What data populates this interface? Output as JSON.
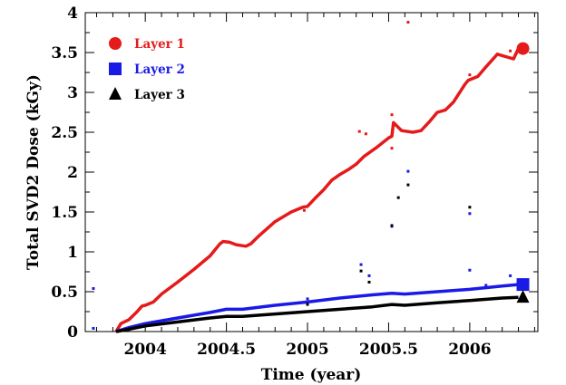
{
  "chart_data": {
    "type": "scatter",
    "title": "",
    "xlabel": "Time (year)",
    "ylabel": "Total SVD2 Dose (kGy)",
    "xlim": [
      2003.63,
      2006.42
    ],
    "ylim": [
      0,
      4
    ],
    "x_ticks": [
      2004,
      2004.5,
      2005,
      2005.5,
      2006
    ],
    "x_tick_labels": [
      "2004",
      "2004.5",
      "2005",
      "2005.5",
      "2006"
    ],
    "y_ticks": [
      0,
      0.5,
      1,
      1.5,
      2,
      2.5,
      3,
      3.5,
      4
    ],
    "y_tick_labels": [
      "0",
      "0.5",
      "1",
      "1.5",
      "2",
      "2.5",
      "3",
      "3.5",
      "4"
    ],
    "legend_position": "top-left",
    "series": [
      {
        "name": "Layer 1",
        "color": "#e51a1a",
        "marker": "circle",
        "points": [
          [
            2003.82,
            0.0
          ],
          [
            2003.85,
            0.1
          ],
          [
            2003.9,
            0.15
          ],
          [
            2003.95,
            0.25
          ],
          [
            2003.98,
            0.32
          ],
          [
            2004.0,
            0.33
          ],
          [
            2004.05,
            0.37
          ],
          [
            2004.1,
            0.47
          ],
          [
            2004.2,
            0.62
          ],
          [
            2004.3,
            0.78
          ],
          [
            2004.4,
            0.95
          ],
          [
            2004.46,
            1.1
          ],
          [
            2004.48,
            1.13
          ],
          [
            2004.52,
            1.12
          ],
          [
            2004.56,
            1.09
          ],
          [
            2004.62,
            1.07
          ],
          [
            2004.65,
            1.1
          ],
          [
            2004.7,
            1.2
          ],
          [
            2004.8,
            1.38
          ],
          [
            2004.9,
            1.5
          ],
          [
            2004.97,
            1.56
          ],
          [
            2005.0,
            1.57
          ],
          [
            2005.05,
            1.68
          ],
          [
            2005.1,
            1.78
          ],
          [
            2005.15,
            1.9
          ],
          [
            2005.2,
            1.97
          ],
          [
            2005.25,
            2.03
          ],
          [
            2005.3,
            2.1
          ],
          [
            2005.35,
            2.2
          ],
          [
            2005.42,
            2.3
          ],
          [
            2005.5,
            2.43
          ],
          [
            2005.52,
            2.45
          ],
          [
            2005.53,
            2.62
          ],
          [
            2005.58,
            2.52
          ],
          [
            2005.65,
            2.5
          ],
          [
            2005.7,
            2.52
          ],
          [
            2005.75,
            2.63
          ],
          [
            2005.8,
            2.75
          ],
          [
            2005.85,
            2.78
          ],
          [
            2005.9,
            2.88
          ],
          [
            2005.97,
            3.1
          ],
          [
            2005.99,
            3.15
          ],
          [
            2006.05,
            3.2
          ],
          [
            2006.1,
            3.32
          ],
          [
            2006.17,
            3.48
          ],
          [
            2006.22,
            3.45
          ],
          [
            2006.27,
            3.42
          ],
          [
            2006.3,
            3.55
          ]
        ],
        "outliers": [
          [
            2005.62,
            3.88
          ],
          [
            2005.52,
            2.72
          ],
          [
            2005.32,
            2.51
          ],
          [
            2005.36,
            2.48
          ],
          [
            2005.52,
            2.3
          ],
          [
            2006.0,
            3.22
          ],
          [
            2006.25,
            3.52
          ],
          [
            2004.98,
            1.52
          ]
        ],
        "end_value": 3.55
      },
      {
        "name": "Layer 2",
        "color": "#1a1ae6",
        "marker": "square",
        "points": [
          [
            2003.82,
            0.0
          ],
          [
            2003.9,
            0.05
          ],
          [
            2004.0,
            0.1
          ],
          [
            2004.2,
            0.17
          ],
          [
            2004.4,
            0.24
          ],
          [
            2004.5,
            0.28
          ],
          [
            2004.6,
            0.28
          ],
          [
            2004.8,
            0.33
          ],
          [
            2005.0,
            0.37
          ],
          [
            2005.2,
            0.42
          ],
          [
            2005.4,
            0.46
          ],
          [
            2005.52,
            0.48
          ],
          [
            2005.6,
            0.47
          ],
          [
            2005.8,
            0.5
          ],
          [
            2006.0,
            0.53
          ],
          [
            2006.2,
            0.57
          ],
          [
            2006.3,
            0.59
          ]
        ],
        "outliers": [
          [
            2003.68,
            0.54
          ],
          [
            2003.68,
            0.04
          ],
          [
            2005.33,
            0.84
          ],
          [
            2005.38,
            0.7
          ],
          [
            2005.52,
            1.32
          ],
          [
            2005.62,
            2.01
          ],
          [
            2006.0,
            0.77
          ],
          [
            2006.0,
            1.48
          ],
          [
            2006.1,
            0.58
          ],
          [
            2006.25,
            0.7
          ],
          [
            2005.0,
            0.41
          ]
        ],
        "end_value": 0.59
      },
      {
        "name": "Layer 3",
        "color": "#000000",
        "marker": "triangle",
        "points": [
          [
            2003.82,
            0.0
          ],
          [
            2003.9,
            0.03
          ],
          [
            2004.0,
            0.07
          ],
          [
            2004.2,
            0.12
          ],
          [
            2004.4,
            0.17
          ],
          [
            2004.5,
            0.19
          ],
          [
            2004.6,
            0.19
          ],
          [
            2004.8,
            0.22
          ],
          [
            2005.0,
            0.25
          ],
          [
            2005.2,
            0.28
          ],
          [
            2005.4,
            0.31
          ],
          [
            2005.52,
            0.34
          ],
          [
            2005.6,
            0.33
          ],
          [
            2005.8,
            0.36
          ],
          [
            2006.0,
            0.39
          ],
          [
            2006.2,
            0.42
          ],
          [
            2006.3,
            0.43
          ]
        ],
        "outliers": [
          [
            2005.33,
            0.76
          ],
          [
            2005.38,
            0.62
          ],
          [
            2005.52,
            1.33
          ],
          [
            2005.56,
            1.68
          ],
          [
            2005.62,
            1.84
          ],
          [
            2006.0,
            1.56
          ],
          [
            2005.0,
            0.34
          ]
        ],
        "end_value": 0.43
      }
    ]
  }
}
